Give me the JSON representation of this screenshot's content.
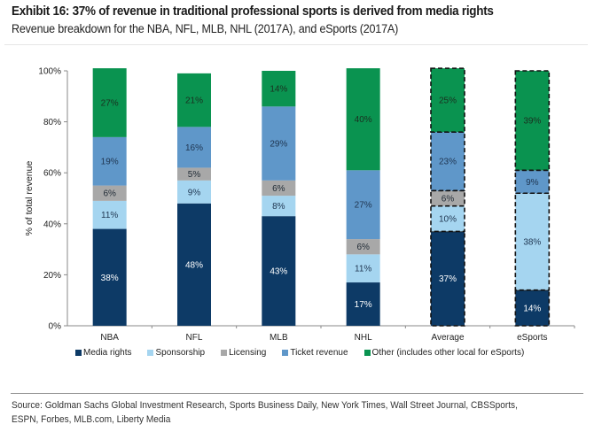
{
  "title": "Exhibit 16: 37% of revenue in traditional professional sports is derived from media rights",
  "subtitle": "Revenue breakdown for the NBA, NFL, MLB, NHL (2017A), and eSports (2017A)",
  "source": "Source: Goldman Sachs Global Investment Research, Sports Business Daily, New York Times, Wall Street Journal, CBSSports, ESPN, Forbes, MLB.com, Liberty Media",
  "chart_data": {
    "type": "bar",
    "stacked": true,
    "title": "Exhibit 16: 37% of revenue in traditional professional sports is derived from media rights",
    "subtitle": "Revenue breakdown for the NBA, NFL, MLB, NHL (2017A), and eSports (2017A)",
    "xlabel": "",
    "ylabel": "% of total revenue",
    "ylim": [
      0,
      100
    ],
    "yticks": [
      "0%",
      "20%",
      "40%",
      "60%",
      "80%",
      "100%"
    ],
    "ytick_values": [
      0,
      20,
      40,
      60,
      80,
      100
    ],
    "categories": [
      "NBA",
      "NFL",
      "MLB",
      "NHL",
      "Average",
      "eSports"
    ],
    "dashed_categories": [
      "Average",
      "eSports"
    ],
    "legend_position": "bottom",
    "series": [
      {
        "name": "Media rights",
        "color": "#0d3a66",
        "label_color": "#ffffff",
        "values": [
          38,
          48,
          43,
          17,
          37,
          14
        ]
      },
      {
        "name": "Sponsorship",
        "color": "#a5d5f0",
        "label_color": "#1f3550",
        "values": [
          11,
          9,
          8,
          11,
          10,
          38
        ]
      },
      {
        "name": "Licensing",
        "color": "#a8a8a8",
        "label_color": "#1f2a35",
        "values": [
          6,
          5,
          6,
          6,
          6,
          0
        ]
      },
      {
        "name": "Ticket revenue",
        "color": "#5f97c9",
        "label_color": "#1f3550",
        "values": [
          19,
          16,
          29,
          27,
          23,
          9
        ]
      },
      {
        "name": "Other (includes other local for eSports)",
        "color": "#0a9350",
        "label_color": "#1a3020",
        "values": [
          27,
          21,
          14,
          40,
          25,
          39
        ]
      }
    ]
  }
}
